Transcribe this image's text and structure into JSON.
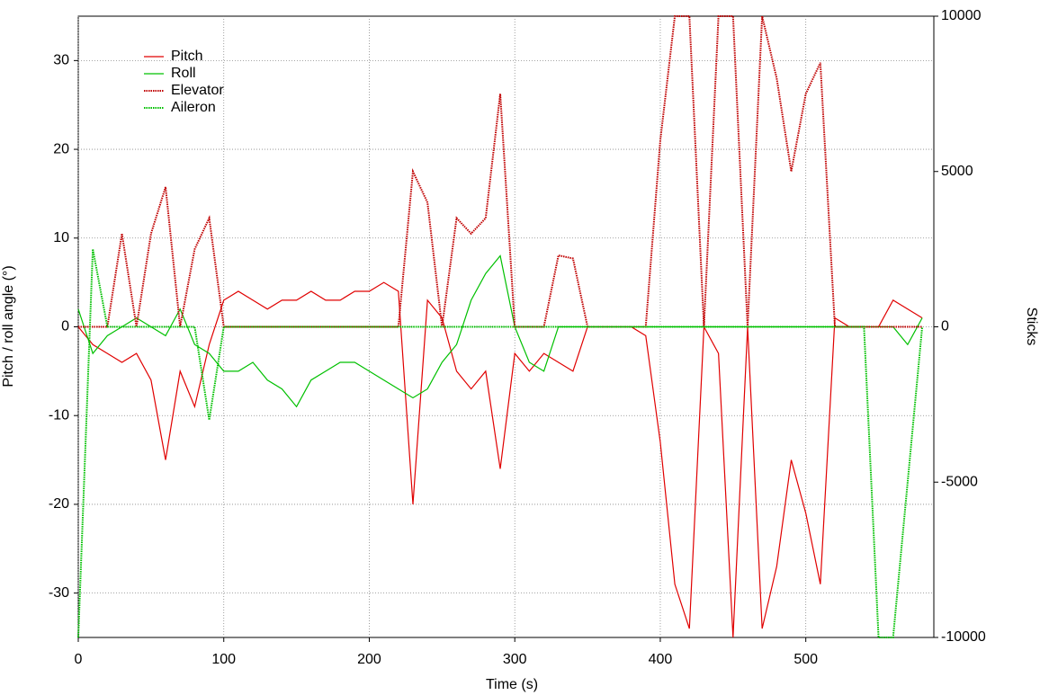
{
  "chart_data": {
    "type": "line",
    "xlabel": "Time (s)",
    "ylabel": "Pitch / roll angle (°)",
    "y2label": "Sticks",
    "xlim": [
      0,
      588
    ],
    "xticks": [
      0,
      100,
      200,
      300,
      400,
      500
    ],
    "ylim": [
      -35,
      35
    ],
    "yticks": [
      -30,
      -20,
      -10,
      0,
      10,
      20,
      30
    ],
    "y2lim": [
      -10000,
      10000
    ],
    "y2ticks": [
      -10000,
      -5000,
      0,
      5000,
      10000
    ],
    "grid": true,
    "legend": "upper left",
    "x": [
      0,
      10,
      20,
      30,
      40,
      50,
      60,
      70,
      80,
      90,
      100,
      110,
      120,
      130,
      140,
      150,
      160,
      170,
      180,
      190,
      200,
      210,
      220,
      230,
      240,
      250,
      260,
      270,
      280,
      290,
      300,
      310,
      320,
      330,
      340,
      350,
      360,
      370,
      380,
      390,
      400,
      410,
      420,
      430,
      440,
      450,
      460,
      470,
      480,
      490,
      500,
      510,
      520,
      530,
      540,
      550,
      560,
      570,
      580
    ],
    "series": [
      {
        "name": "Pitch",
        "color": "#e00000",
        "dashed": false,
        "values": [
          0,
          -2,
          -3,
          -4,
          -3,
          -6,
          -15,
          -5,
          -9,
          -2,
          3,
          4,
          3,
          2,
          3,
          3,
          4,
          3,
          3,
          4,
          4,
          5,
          4,
          -20,
          3,
          1,
          -5,
          -7,
          -5,
          -16,
          -3,
          -5,
          -3,
          -4,
          -5,
          0,
          0,
          0,
          0,
          -1,
          -13,
          -29,
          -34,
          0,
          -3,
          -35,
          0,
          -34,
          -27,
          -15,
          -21,
          -29,
          1,
          0,
          0,
          0,
          3,
          2,
          1
        ]
      },
      {
        "name": "Roll",
        "color": "#00c000",
        "dashed": false,
        "values": [
          2,
          -3,
          -1,
          0,
          1,
          0,
          -1,
          2,
          -2,
          -3,
          -5,
          -5,
          -4,
          -6,
          -7,
          -9,
          -6,
          -5,
          -4,
          -4,
          -5,
          -6,
          -7,
          -8,
          -7,
          -4,
          -2,
          3,
          6,
          8,
          0,
          -4,
          -5,
          0,
          0,
          0,
          0,
          0,
          0,
          0,
          0,
          0,
          0,
          0,
          0,
          0,
          0,
          0,
          0,
          0,
          0,
          0,
          0,
          0,
          0,
          0,
          0,
          -2,
          1
        ]
      },
      {
        "name": "Elevator",
        "color": "#c00000",
        "dashed": true,
        "axis": "y2",
        "values": [
          0,
          0,
          0,
          3000,
          0,
          3000,
          4500,
          0,
          2500,
          3500,
          0,
          0,
          0,
          0,
          0,
          0,
          0,
          0,
          0,
          0,
          0,
          0,
          0,
          5000,
          4000,
          0,
          3500,
          3000,
          3500,
          7500,
          0,
          0,
          0,
          2300,
          2200,
          0,
          0,
          0,
          0,
          0,
          6000,
          10000,
          10000,
          0,
          10000,
          10000,
          0,
          10000,
          8000,
          5000,
          7500,
          8500,
          0,
          0,
          0,
          0,
          0,
          0,
          0
        ]
      },
      {
        "name": "Aileron",
        "color": "#00c000",
        "dashed": true,
        "axis": "y2",
        "values": [
          -10000,
          2500,
          0,
          0,
          0,
          0,
          0,
          0,
          0,
          -3000,
          0,
          0,
          0,
          0,
          0,
          0,
          0,
          0,
          0,
          0,
          0,
          0,
          0,
          0,
          0,
          0,
          0,
          0,
          0,
          0,
          0,
          0,
          0,
          0,
          0,
          0,
          0,
          0,
          0,
          0,
          0,
          0,
          0,
          0,
          0,
          0,
          0,
          0,
          0,
          0,
          0,
          0,
          0,
          0,
          0,
          -10000,
          -10000,
          -5000,
          0
        ]
      }
    ]
  }
}
